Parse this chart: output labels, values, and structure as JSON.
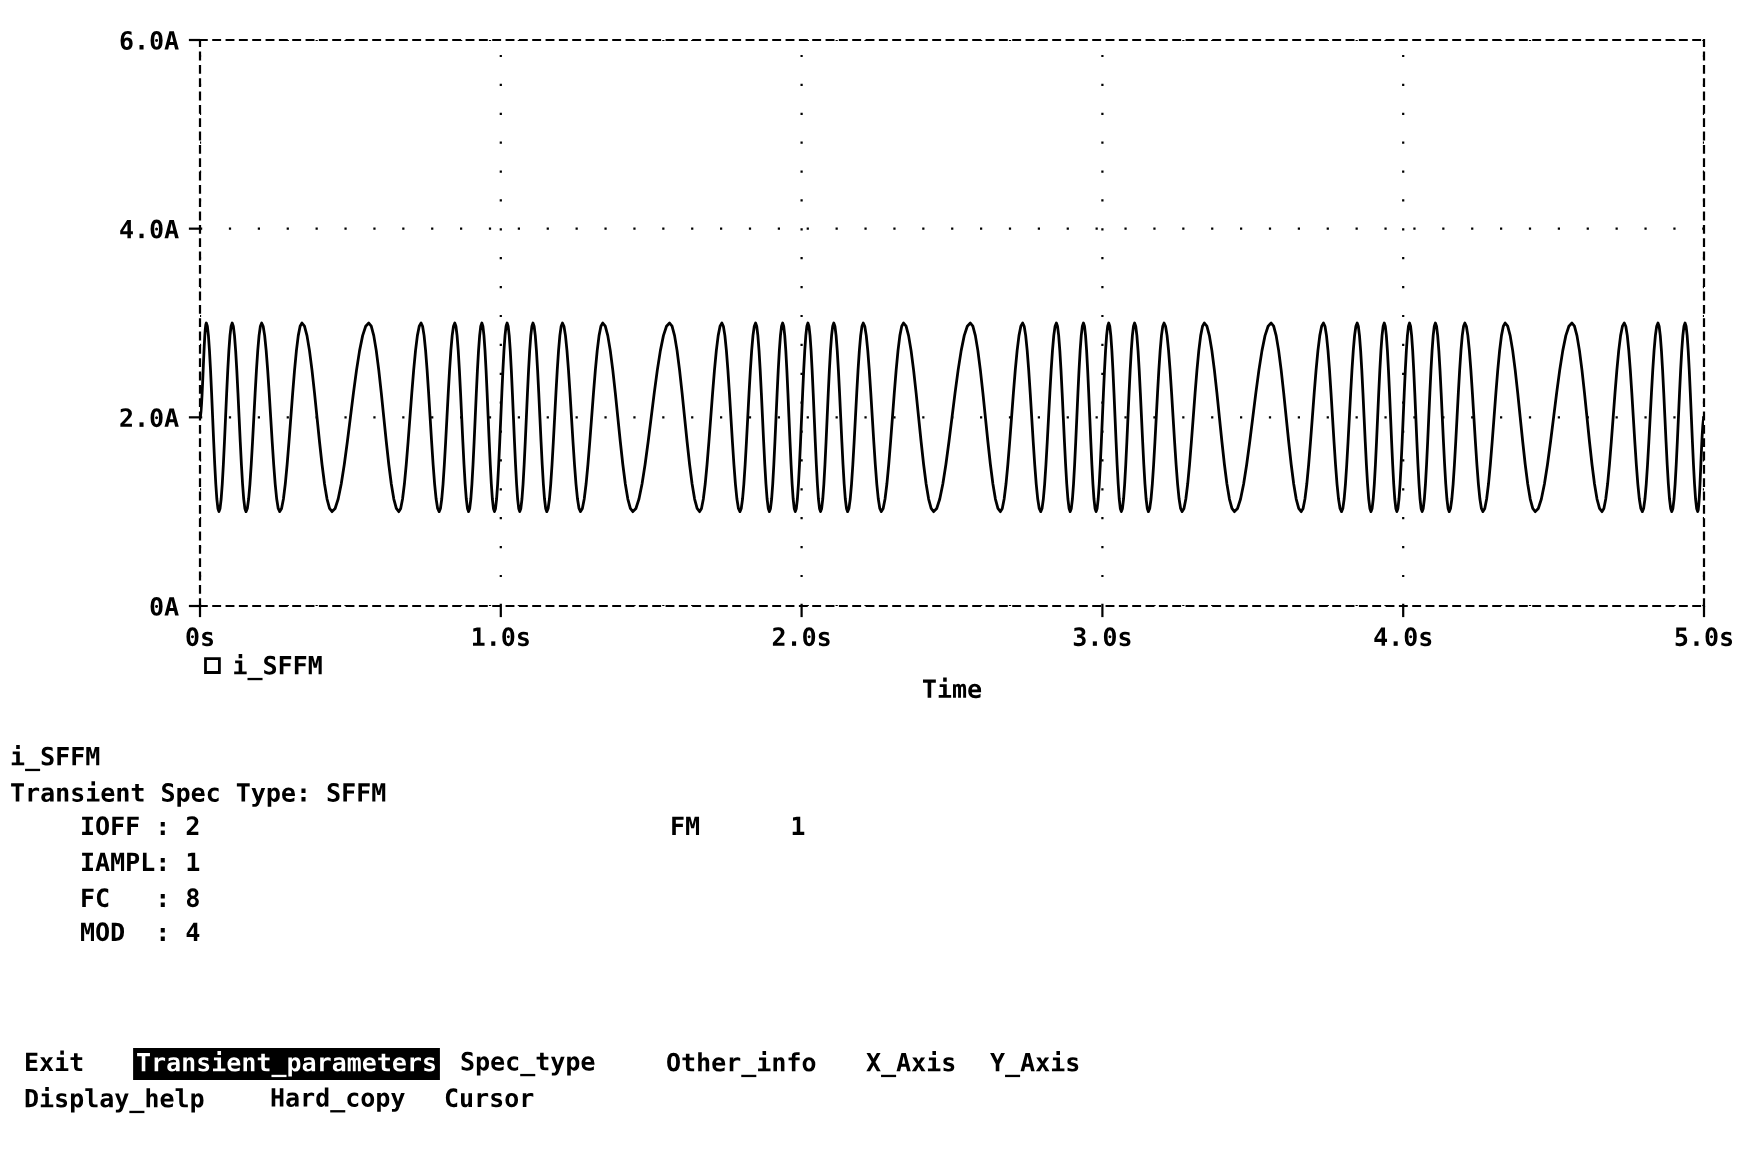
{
  "chart_data": {
    "type": "line",
    "xlabel": "Time",
    "x": [
      0,
      0.021,
      0.063,
      0.107,
      0.153,
      0.205,
      0.265,
      0.339,
      0.439,
      0.561,
      0.661,
      0.735,
      0.795,
      0.847,
      0.893,
      0.937,
      0.979,
      1.021,
      1.063,
      1.107,
      1.153,
      1.205,
      1.265,
      1.339,
      1.439,
      1.561,
      1.661,
      1.735,
      1.795,
      1.847,
      1.893,
      1.937,
      1.979,
      2.021,
      2.063,
      2.107,
      2.153,
      2.205,
      2.265,
      2.339,
      2.439,
      2.561,
      2.661,
      2.735,
      2.795,
      2.847,
      2.893,
      2.937,
      2.979,
      3.021,
      3.063,
      3.107,
      3.153,
      3.205,
      3.265,
      3.339,
      3.439,
      3.561,
      3.661,
      3.735,
      3.795,
      3.847,
      3.893,
      3.937,
      3.979,
      4.021,
      4.063,
      4.107,
      4.153,
      4.205,
      4.265,
      4.339,
      4.439,
      4.561,
      4.661,
      4.735,
      4.795,
      4.847,
      4.893,
      4.937,
      4.979,
      5
    ],
    "series": [
      {
        "name": "i_SFFM",
        "color": "#000000",
        "values": [
          2,
          3,
          1,
          3,
          1,
          3,
          1,
          3,
          1,
          3,
          1,
          3,
          1,
          3,
          1,
          3,
          1,
          3,
          1,
          3,
          1,
          3,
          1,
          3,
          1,
          3,
          1,
          3,
          1,
          3,
          1,
          3,
          1,
          3,
          1,
          3,
          1,
          3,
          1,
          3,
          1,
          3,
          1,
          3,
          1,
          3,
          1,
          3,
          1,
          3,
          1,
          3,
          1,
          3,
          1,
          3,
          1,
          3,
          1,
          3,
          1,
          3,
          1,
          3,
          1,
          3,
          1,
          3,
          1,
          3,
          1,
          3,
          1,
          3,
          1,
          3,
          1,
          3,
          1,
          3,
          1,
          2
        ]
      }
    ],
    "xlim": [
      0,
      5
    ],
    "ylim": [
      0,
      6
    ],
    "xticks": [
      {
        "value": 0,
        "label": "0s"
      },
      {
        "value": 1,
        "label": "1.0s"
      },
      {
        "value": 2,
        "label": "2.0s"
      },
      {
        "value": 3,
        "label": "3.0s"
      },
      {
        "value": 4,
        "label": "4.0s"
      },
      {
        "value": 5,
        "label": "5.0s"
      }
    ],
    "yticks": [
      {
        "value": 0,
        "label": "0A"
      },
      {
        "value": 2,
        "label": "2.0A"
      },
      {
        "value": 4,
        "label": "4.0A"
      },
      {
        "value": 6,
        "label": "6.0A"
      }
    ],
    "grid": true,
    "legend": "bottom left",
    "line_style": "solid",
    "annotations": [
      "i_SFFM",
      "Transient Spec Type: SFFM",
      "IOFF : 2",
      "FM      1",
      "IAMPL: 1",
      "FC   : 8",
      "MOD  : 4",
      "Exit",
      "Transient_parameters",
      "Spec_type",
      "Other_info",
      "X_Axis",
      "Y_Axis",
      "Display_help",
      "Hard_copy",
      "Cursor"
    ]
  }
}
